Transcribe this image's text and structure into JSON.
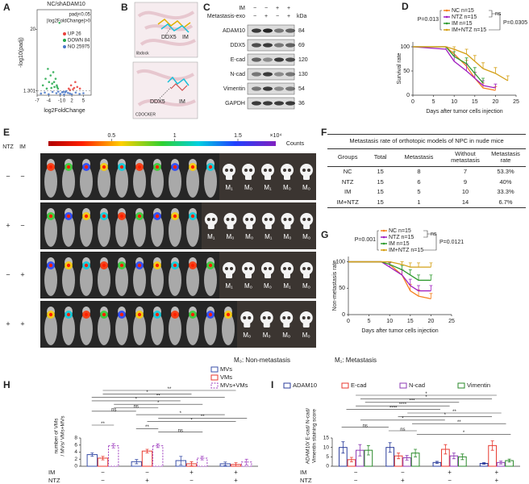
{
  "panel_labels": [
    "A",
    "B",
    "C",
    "D",
    "E",
    "F",
    "G",
    "H",
    "I"
  ],
  "docking": {
    "labels": [
      "DDX5",
      "IM",
      "DDX5",
      "IM"
    ],
    "methods": [
      "libdock",
      "CDOCKER"
    ]
  },
  "western": {
    "conditions": [
      "IM",
      "Metastasis-exo"
    ],
    "signs": [
      [
        "−",
        "−",
        "+",
        "+"
      ],
      [
        "−",
        "+",
        "−",
        "+"
      ]
    ],
    "kda_label": "kDa",
    "proteins": [
      "ADAM10",
      "DDX5",
      "E-cad",
      "N-cad",
      "Vimentin",
      "GAPDH"
    ],
    "kda": [
      84,
      69,
      120,
      130,
      54,
      36
    ]
  },
  "imaging": {
    "headers": [
      "NTZ",
      "IM"
    ],
    "rows": [
      [
        "−",
        "−"
      ],
      [
        "+",
        "−"
      ],
      [
        "−",
        "+"
      ],
      [
        "+",
        "+"
      ]
    ],
    "colorbar_lim": [
      0,
      1.8
    ],
    "colorbar_ticks": [
      0.5,
      1,
      1.5
    ],
    "colorbar_exponent": "×10⁴",
    "colorbar_label": "Counts",
    "outcomes": [
      [
        "M₁",
        "M₀",
        "M₁",
        "M₀",
        "M₀"
      ],
      [
        "M₁",
        "M₀",
        "M₀",
        "M₁",
        "M₀",
        "M₀"
      ],
      [
        "M₁",
        "M₀",
        "M₀",
        "M₁",
        "M₀"
      ],
      [
        "M₀",
        "M₀",
        "M₀",
        "M₀"
      ]
    ],
    "legend": [
      "M₀: Non-metastasis",
      "M₁: Metastasis"
    ]
  },
  "table": {
    "title": "Metastasis rate of orthotopic models of NPC in nude mice",
    "header": [
      "Groups",
      "Total",
      "Metastasis",
      "Without metastasis",
      "Metastasis rate"
    ],
    "rows": [
      [
        "NC",
        15,
        8,
        7,
        "53.3%"
      ],
      [
        "NTZ",
        15,
        6,
        9,
        "40%"
      ],
      [
        "IM",
        15,
        5,
        10,
        "33.3%"
      ],
      [
        "IM+NTZ",
        15,
        1,
        14,
        "6.7%"
      ]
    ]
  },
  "chart_data": [
    {
      "type": "scatter",
      "title": "NC/shADAM10",
      "legend_title": [
        "padj<0.05",
        "|log2FoldChange|>0"
      ],
      "x_label": "log2FoldChange",
      "y_label": "-log10(padj)",
      "xlim": [
        -7,
        7
      ],
      "xticks": [
        -7,
        -4,
        -1,
        0,
        2,
        5
      ],
      "ylim": [
        0,
        26
      ],
      "yticks": [
        1.301,
        20
      ],
      "series": [
        {
          "name": "UP 26",
          "color": "#e8413c",
          "x": [
            1.2,
            1.5,
            1.8,
            2.3,
            2.6,
            2.9,
            3.4,
            4.1
          ],
          "y": [
            2,
            1.6,
            3,
            1.8,
            2.2,
            4,
            2.5,
            2
          ]
        },
        {
          "name": "DOWN 84",
          "color": "#22a84a",
          "x": [
            -5.5,
            -4.8,
            -4.5,
            -4.2,
            -3.9,
            -3.5,
            -3.3,
            -3.1,
            -2.8,
            -2.6,
            -2.5,
            -2.2,
            -1.9,
            -1.8,
            -1.6,
            -1.2
          ],
          "y": [
            3,
            5,
            2,
            8,
            4,
            6,
            2.2,
            3.5,
            7,
            4,
            2.5,
            5,
            3,
            2.5,
            2,
            22
          ]
        },
        {
          "name": "NO 25975",
          "color": "#4a78c8",
          "x": [
            -6,
            -5,
            -4,
            -3,
            -2,
            -1.5,
            -1,
            -0.5,
            -0.2,
            0,
            0.3,
            0.5,
            1,
            1.5,
            2,
            3,
            4,
            5
          ],
          "y": [
            0.5,
            0.8,
            0.3,
            1,
            0.6,
            1.1,
            0.4,
            0.9,
            1,
            0.2,
            0.9,
            1.2,
            0.7,
            0.5,
            0.3,
            0.8,
            0.4,
            0.6
          ]
        }
      ]
    },
    {
      "type": "line",
      "y_label": "Survival rate",
      "x_label": "Days after tumor cells injection",
      "xlim": [
        0,
        25
      ],
      "xticks": [
        0,
        5,
        10,
        15,
        20,
        25
      ],
      "ylim": [
        0,
        110
      ],
      "yticks": [
        0,
        50,
        100
      ],
      "annotations": [
        "P=0.013",
        "ns",
        "P=0.0305"
      ],
      "x": [
        0,
        8,
        10,
        13,
        15,
        17,
        20,
        23
      ],
      "series": [
        {
          "name": "NC n=15",
          "color": "#f58220",
          "values": [
            100,
            100,
            85,
            60,
            35,
            15,
            10,
            null
          ],
          "errors": [
            null,
            null,
            10,
            12,
            12,
            10,
            8,
            null
          ]
        },
        {
          "name": "NTZ n=15",
          "color": "#a020c0",
          "values": [
            100,
            95,
            70,
            50,
            35,
            20,
            15,
            null
          ],
          "errors": [
            null,
            5,
            12,
            15,
            12,
            10,
            8,
            null
          ]
        },
        {
          "name": "IM n=15",
          "color": "#2e9a2e",
          "values": [
            100,
            100,
            80,
            65,
            45,
            25,
            null,
            null
          ],
          "errors": [
            null,
            null,
            10,
            12,
            12,
            10,
            null,
            null
          ]
        },
        {
          "name": "IM+NTZ n=15",
          "color": "#d4a017",
          "values": [
            100,
            100,
            95,
            85,
            70,
            55,
            45,
            30
          ],
          "errors": [
            null,
            null,
            5,
            10,
            12,
            12,
            12,
            10
          ]
        }
      ]
    },
    {
      "type": "line",
      "y_label": "Non-metastasis rate",
      "x_label": "Days after tumor cells injection",
      "xlim": [
        0,
        25
      ],
      "xticks": [
        0,
        5,
        10,
        15,
        20,
        25
      ],
      "ylim": [
        0,
        110
      ],
      "yticks": [
        0,
        50,
        100
      ],
      "annotations": [
        "P=0.001",
        "ns",
        "P=0.0121"
      ],
      "x": [
        0,
        8,
        10,
        13,
        15,
        17,
        20
      ],
      "series": [
        {
          "name": "NC n=15",
          "color": "#f58220",
          "values": [
            100,
            100,
            95,
            75,
            45,
            35,
            30
          ],
          "errors": [
            null,
            null,
            5,
            10,
            12,
            12,
            10
          ]
        },
        {
          "name": "NTZ n=15",
          "color": "#a020c0",
          "values": [
            100,
            100,
            90,
            75,
            55,
            45,
            45
          ],
          "errors": [
            null,
            null,
            8,
            10,
            12,
            10,
            10
          ]
        },
        {
          "name": "IM  n=15",
          "color": "#2e9a2e",
          "values": [
            100,
            100,
            95,
            85,
            75,
            65,
            65
          ],
          "errors": [
            null,
            null,
            5,
            8,
            10,
            10,
            10
          ]
        },
        {
          "name": "IM+NTZ n=15",
          "color": "#d4a017",
          "values": [
            100,
            100,
            100,
            95,
            90,
            90,
            90
          ],
          "errors": [
            null,
            null,
            null,
            5,
            8,
            8,
            8
          ]
        }
      ]
    },
    {
      "type": "bar",
      "y_label": [
        "number of VMs",
        "/ MVs/ VMs+MVs"
      ],
      "ylim": [
        0,
        8
      ],
      "yticks": [
        0,
        2,
        4,
        6,
        8
      ],
      "row_labels": [
        "IM",
        "NTZ"
      ],
      "rows": [
        [
          "−",
          "−",
          "+",
          "+"
        ],
        [
          "−",
          "+",
          "−",
          "+"
        ]
      ],
      "significance": [
        "**",
        "*",
        "**",
        "*",
        "*",
        "ns",
        "ns",
        "*",
        "**",
        "*",
        "**",
        "**",
        "ns"
      ],
      "series": [
        {
          "name": "MVs",
          "color": "#3a4fa8",
          "dashed": false,
          "values": [
            3.3,
            1.3,
            1.6,
            0.7
          ],
          "errors": [
            0.5,
            0.6,
            1.2,
            0.5
          ]
        },
        {
          "name": "VMs",
          "color": "#e8392f",
          "dashed": false,
          "values": [
            2.3,
            4.3,
            0.7,
            0.5
          ],
          "errors": [
            0.5,
            0.5,
            0.6,
            0.5
          ]
        },
        {
          "name": "MVs+VMs",
          "color": "#a040c0",
          "dashed": true,
          "values": [
            5.8,
            5.8,
            2.3,
            1.2
          ],
          "errors": [
            0.6,
            0.5,
            0.5,
            0.8
          ]
        }
      ]
    },
    {
      "type": "bar",
      "y_label": [
        "ADAM10/ E-cad/ N-cad/",
        "Vimentin staining score"
      ],
      "ylim": [
        0,
        15
      ],
      "yticks": [
        0,
        5,
        10,
        15
      ],
      "row_labels": [
        "IM",
        "NTZ"
      ],
      "rows": [
        [
          "−",
          "−",
          "+",
          "+"
        ],
        [
          "−",
          "+",
          "−",
          "+"
        ]
      ],
      "significance": [
        "*",
        "*",
        "***",
        "****",
        "****",
        "**",
        "*",
        "*",
        "**",
        "ns",
        "ns",
        "*"
      ],
      "series": [
        {
          "name": "ADAM10",
          "color": "#2b3d9c",
          "dashed": false,
          "values": [
            10,
            10,
            2,
            1.5
          ],
          "errors": [
            3,
            2.5,
            0.6,
            0.4
          ]
        },
        {
          "name": "E-cad",
          "color": "#e8392f",
          "dashed": false,
          "values": [
            3.5,
            5.5,
            9,
            11
          ],
          "errors": [
            1.2,
            1.5,
            2.5,
            2.5
          ]
        },
        {
          "name": "N-cad",
          "color": "#8e3bb5",
          "dashed": false,
          "values": [
            8.5,
            4.5,
            5.5,
            2
          ],
          "errors": [
            3,
            1.2,
            1.5,
            0.8
          ]
        },
        {
          "name": "Vimentin",
          "color": "#2a8a2a",
          "dashed": false,
          "values": [
            8.5,
            7,
            5,
            3
          ],
          "errors": [
            2.5,
            2,
            1.5,
            0.8
          ]
        }
      ]
    }
  ]
}
